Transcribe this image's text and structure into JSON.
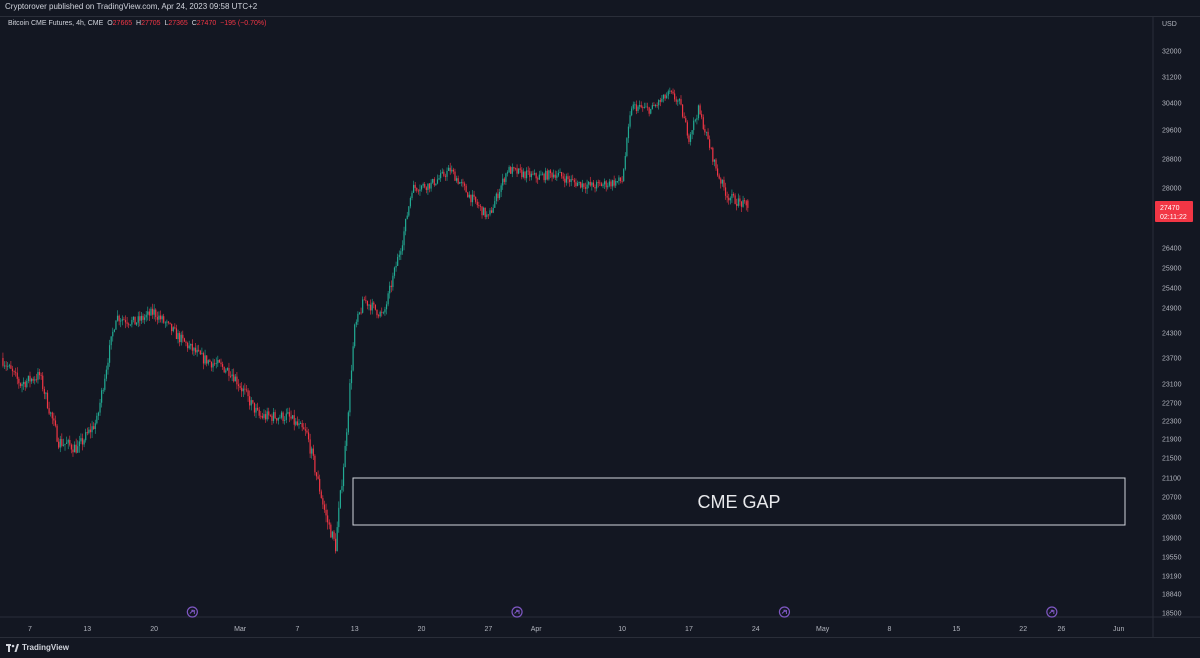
{
  "header": {
    "published_text": "Cryptorover published on TradingView.com, Apr 24, 2023 09:58 UTC+2"
  },
  "legend": {
    "symbol": "Bitcoin CME Futures, 4h, CME",
    "o_label": "O",
    "o_value": "27665",
    "h_label": "H",
    "h_value": "27705",
    "l_label": "L",
    "l_value": "27365",
    "c_label": "C",
    "c_value": "27470",
    "change": "−195 (−0.70%)"
  },
  "annotation": {
    "gap_label": "CME GAP"
  },
  "price_tag": {
    "price": "27470",
    "countdown": "02:11:22"
  },
  "branding": {
    "logo_text": "TradingView"
  },
  "colors": {
    "up": "#22ab94",
    "down": "#f23645",
    "bg": "#131722",
    "text": "#b2b5be",
    "event": "#7e57c2"
  },
  "chart_data": {
    "type": "candlestick",
    "currency_label": "USD",
    "y_ticks": [
      32000,
      31200,
      30400,
      29600,
      28800,
      28000,
      26400,
      25900,
      25400,
      24900,
      24300,
      23700,
      23100,
      22700,
      22300,
      21900,
      21500,
      21100,
      20700,
      20300,
      19900,
      19550,
      19190,
      18840,
      18500
    ],
    "x_ticks": [
      "7",
      "13",
      "20",
      "Mar",
      "7",
      "13",
      "20",
      "27",
      "Apr",
      "10",
      "17",
      "24",
      "May",
      "8",
      "15",
      "22",
      "26",
      "Jun"
    ],
    "last_price": 27470,
    "gap_zone": {
      "low": 20150,
      "high": 21180,
      "start": "Mar 13",
      "end": "May 27"
    },
    "event_markers": [
      "Feb 24",
      "Mar 30",
      "Apr 27",
      "May 25"
    ],
    "path_anchors": [
      {
        "date": "Feb 4",
        "price": 23700
      },
      {
        "date": "Feb 6",
        "price": 23100
      },
      {
        "date": "Feb 8",
        "price": 23300
      },
      {
        "date": "Feb 10",
        "price": 21850
      },
      {
        "date": "Feb 12",
        "price": 21700
      },
      {
        "date": "Feb 14",
        "price": 22300
      },
      {
        "date": "Feb 16",
        "price": 24700
      },
      {
        "date": "Feb 18",
        "price": 24550
      },
      {
        "date": "Feb 20",
        "price": 24800
      },
      {
        "date": "Feb 23",
        "price": 24100
      },
      {
        "date": "Feb 25",
        "price": 23700
      },
      {
        "date": "Feb 27",
        "price": 23500
      },
      {
        "date": "Feb 28",
        "price": 23400
      },
      {
        "date": "Mar 3",
        "price": 22400
      },
      {
        "date": "Mar 6",
        "price": 22400
      },
      {
        "date": "Mar 8",
        "price": 22000
      },
      {
        "date": "Mar 10",
        "price": 20300
      },
      {
        "date": "Mar 11",
        "price": 19750
      },
      {
        "date": "Mar 12",
        "price": 21700
      },
      {
        "date": "Mar 13",
        "price": 24400
      },
      {
        "date": "Mar 14",
        "price": 25100
      },
      {
        "date": "Mar 16",
        "price": 24700
      },
      {
        "date": "Mar 18",
        "price": 26600
      },
      {
        "date": "Mar 19",
        "price": 28000
      },
      {
        "date": "Mar 21",
        "price": 28100
      },
      {
        "date": "Mar 23",
        "price": 28500
      },
      {
        "date": "Mar 25",
        "price": 27800
      },
      {
        "date": "Mar 27",
        "price": 27200
      },
      {
        "date": "Mar 29",
        "price": 28500
      },
      {
        "date": "Apr 1",
        "price": 28300
      },
      {
        "date": "Apr 3",
        "price": 28400
      },
      {
        "date": "Apr 5",
        "price": 28150
      },
      {
        "date": "Apr 7",
        "price": 28050
      },
      {
        "date": "Apr 10",
        "price": 28200
      },
      {
        "date": "Apr 11",
        "price": 30300
      },
      {
        "date": "Apr 13",
        "price": 30200
      },
      {
        "date": "Apr 15",
        "price": 30700
      },
      {
        "date": "Apr 16",
        "price": 30400
      },
      {
        "date": "Apr 17",
        "price": 29400
      },
      {
        "date": "Apr 18",
        "price": 30200
      },
      {
        "date": "Apr 19",
        "price": 29300
      },
      {
        "date": "Apr 20",
        "price": 28400
      },
      {
        "date": "Apr 21",
        "price": 27800
      },
      {
        "date": "Apr 23",
        "price": 27500
      }
    ]
  }
}
